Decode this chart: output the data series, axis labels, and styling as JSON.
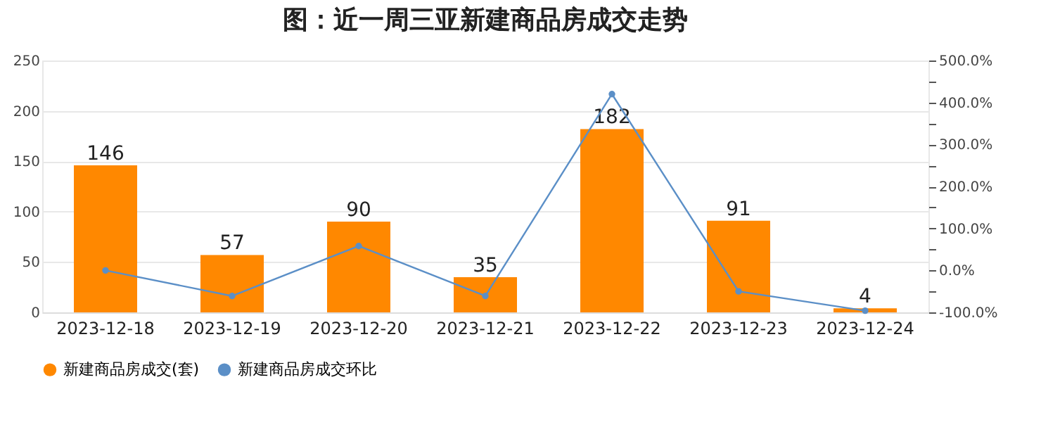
{
  "chart_data": {
    "type": "bar",
    "title": "图：近一周三亚新建商品房成交走势",
    "categories": [
      "2023-12-18",
      "2023-12-19",
      "2023-12-20",
      "2023-12-21",
      "2023-12-22",
      "2023-12-23",
      "2023-12-24"
    ],
    "series": [
      {
        "name": "新建商品房成交(套)",
        "color": "#ff8800",
        "values": [
          146,
          57,
          90,
          35,
          182,
          91,
          4
        ],
        "value_labels": [
          "146",
          "57",
          "90",
          "35",
          "182",
          "91",
          "4"
        ]
      },
      {
        "name": "新建商品房成交环比",
        "type": "line",
        "axis": "y2",
        "color": "#5b8fc7",
        "marker": "circle",
        "values": [
          0,
          -61,
          58,
          -61,
          420,
          -50,
          -96
        ]
      }
    ],
    "ylim": [
      0,
      250
    ],
    "yticks": [
      0,
      50,
      100,
      150,
      200,
      250
    ],
    "y2lim": [
      -100,
      500
    ],
    "y2ticks": [
      {
        "value": -100,
        "label": "-100.0%"
      },
      {
        "value": -50,
        "label": null
      },
      {
        "value": 0,
        "label": "0.0%"
      },
      {
        "value": 50,
        "label": null
      },
      {
        "value": 100,
        "label": "100.0%"
      },
      {
        "value": 150,
        "label": null
      },
      {
        "value": 200,
        "label": "200.0%"
      },
      {
        "value": 250,
        "label": null
      },
      {
        "value": 300,
        "label": "300.0%"
      },
      {
        "value": 350,
        "label": null
      },
      {
        "value": 400,
        "label": "400.0%"
      },
      {
        "value": 450,
        "label": null
      },
      {
        "value": 500,
        "label": "500.0%"
      }
    ],
    "grid": "y",
    "legend": "bottom"
  }
}
